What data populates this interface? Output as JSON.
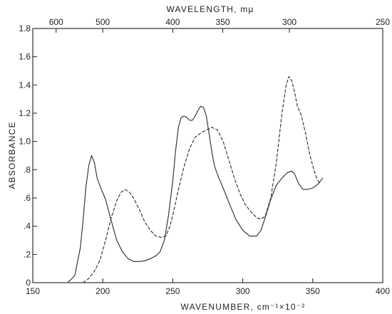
{
  "chart_data": {
    "type": "line",
    "title": "",
    "xlabel": "WAVENUMBER, cm⁻¹×10⁻²",
    "ylabel": "ABSORBANCE",
    "x2label": "WAVELENGTH, mμ",
    "xlim": [
      150,
      400
    ],
    "ylim": [
      0,
      1.8
    ],
    "grid": false,
    "legend": "none",
    "x_ticks": [
      {
        "value": 150,
        "label": "150"
      },
      {
        "value": 200,
        "label": "200"
      },
      {
        "value": 250,
        "label": "250"
      },
      {
        "value": 300,
        "label": "300"
      },
      {
        "value": 350,
        "label": "350"
      },
      {
        "value": 400,
        "label": "400"
      }
    ],
    "y_ticks": [
      {
        "value": 0,
        "label": "0"
      },
      {
        "value": 0.2,
        "label": ".2"
      },
      {
        "value": 0.4,
        "label": ".4"
      },
      {
        "value": 0.6,
        "label": ".6"
      },
      {
        "value": 0.8,
        "label": ".8"
      },
      {
        "value": 1.0,
        "label": "1.0"
      },
      {
        "value": 1.2,
        "label": "1.2"
      },
      {
        "value": 1.4,
        "label": "1.4"
      },
      {
        "value": 1.6,
        "label": "1.6"
      },
      {
        "value": 1.8,
        "label": "1.8"
      }
    ],
    "x2_ticks": [
      {
        "value": 600,
        "label": "600"
      },
      {
        "value": 500,
        "label": "500"
      },
      {
        "value": 400,
        "label": "400"
      },
      {
        "value": 350,
        "label": "350"
      },
      {
        "value": 300,
        "label": "300"
      },
      {
        "value": 250,
        "label": "250"
      }
    ],
    "series": [
      {
        "style": "solid",
        "color": "#2a2a2a",
        "x": [
          175,
          180,
          184,
          186,
          188,
          190,
          192,
          194,
          196,
          199,
          202,
          206,
          210,
          214,
          218,
          222,
          226,
          230,
          234,
          238,
          241,
          244,
          247,
          250,
          252,
          254,
          256,
          258,
          260,
          262,
          264,
          266,
          268,
          270,
          272,
          274,
          276,
          278,
          280,
          283,
          286,
          290,
          295,
          300,
          305,
          310,
          313,
          316,
          320,
          324,
          328,
          332,
          335,
          337,
          340,
          343,
          346,
          350,
          354,
          357
        ],
        "y": [
          0.0,
          0.05,
          0.25,
          0.45,
          0.68,
          0.83,
          0.9,
          0.85,
          0.74,
          0.66,
          0.59,
          0.44,
          0.3,
          0.22,
          0.17,
          0.15,
          0.15,
          0.155,
          0.17,
          0.19,
          0.22,
          0.3,
          0.48,
          0.72,
          0.93,
          1.1,
          1.17,
          1.18,
          1.17,
          1.15,
          1.15,
          1.18,
          1.22,
          1.25,
          1.24,
          1.18,
          1.05,
          0.92,
          0.82,
          0.74,
          0.67,
          0.57,
          0.45,
          0.37,
          0.33,
          0.33,
          0.37,
          0.46,
          0.59,
          0.69,
          0.74,
          0.78,
          0.79,
          0.77,
          0.7,
          0.66,
          0.66,
          0.67,
          0.7,
          0.74
        ]
      },
      {
        "style": "dashed",
        "color": "#2a2a2a",
        "x": [
          186,
          190,
          194,
          198,
          202,
          206,
          210,
          213,
          216,
          219,
          222,
          226,
          230,
          234,
          238,
          242,
          245,
          248,
          251,
          254,
          258,
          262,
          266,
          270,
          274,
          278,
          282,
          286,
          290,
          294,
          298,
          302,
          306,
          310,
          313,
          316,
          320,
          324,
          328,
          331,
          333,
          335,
          337,
          339,
          342,
          345,
          348,
          352,
          355
        ],
        "y": [
          0.0,
          0.03,
          0.08,
          0.16,
          0.3,
          0.46,
          0.58,
          0.64,
          0.66,
          0.64,
          0.6,
          0.52,
          0.43,
          0.37,
          0.33,
          0.32,
          0.33,
          0.4,
          0.52,
          0.66,
          0.82,
          0.95,
          1.03,
          1.06,
          1.08,
          1.1,
          1.08,
          1.0,
          0.87,
          0.74,
          0.63,
          0.55,
          0.5,
          0.46,
          0.45,
          0.47,
          0.6,
          0.85,
          1.2,
          1.4,
          1.46,
          1.43,
          1.35,
          1.25,
          1.18,
          1.05,
          0.9,
          0.76,
          0.7
        ]
      }
    ]
  }
}
